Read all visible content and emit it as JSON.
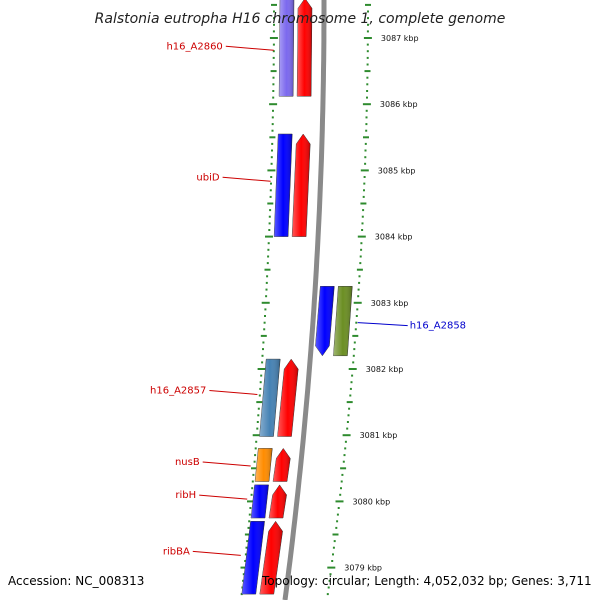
{
  "title": "Ralstonia eutropha H16 chromosome 1, complete genome",
  "accession": "Accession: NC_008313",
  "summary": "Topology: circular; Length: 4,052,032 bp; Genes: 3,711",
  "colors": {
    "backbone": "#8a8a8a",
    "tick": "#2e8b2e",
    "label_forward": "#cc0000",
    "label_reverse": "#0000cc",
    "cds": "#ff0000",
    "gene_blue": "#0000ff",
    "gene_purple": "#7b68ee",
    "gene_steel": "#4682b4",
    "gene_orange": "#ff8c00",
    "gene_olive": "#6b8e23"
  },
  "ticks": [
    {
      "kbp": 3087,
      "label": "3087 kbp"
    },
    {
      "kbp": 3086,
      "label": "3086 kbp"
    },
    {
      "kbp": 3085,
      "label": "3085 kbp"
    },
    {
      "kbp": 3084,
      "label": "3084 kbp"
    },
    {
      "kbp": 3083,
      "label": "3083 kbp"
    },
    {
      "kbp": 3082,
      "label": "3082 kbp"
    },
    {
      "kbp": 3081,
      "label": "3081 kbp"
    },
    {
      "kbp": 3080,
      "label": "3080 kbp"
    },
    {
      "kbp": 3079,
      "label": "3079 kbp"
    }
  ],
  "genes": [
    {
      "name": "h16_A2860",
      "strand": "forward",
      "start_kbp": 3086.12,
      "end_kbp": 3087.6,
      "color": "#7b68ee",
      "has_label": true,
      "label_kbp": 3086.83
    },
    {
      "name": "ubiD",
      "strand": "forward",
      "start_kbp": 3084.0,
      "end_kbp": 3085.55,
      "color": "#0000ff",
      "has_label": true,
      "label_kbp": 3084.85
    },
    {
      "name": "h16_A2857",
      "strand": "forward",
      "start_kbp": 3080.98,
      "end_kbp": 3082.15,
      "color": "#4682b4",
      "has_label": true,
      "label_kbp": 3081.63
    },
    {
      "name": "nusB",
      "strand": "forward",
      "start_kbp": 3080.3,
      "end_kbp": 3080.8,
      "color": "#ff8c00",
      "has_label": true,
      "label_kbp": 3080.55
    },
    {
      "name": "ribH",
      "strand": "forward",
      "start_kbp": 3079.75,
      "end_kbp": 3080.25,
      "color": "#0000ff",
      "has_label": true,
      "label_kbp": 3080.05
    },
    {
      "name": "ribBA",
      "strand": "forward",
      "start_kbp": 3078.6,
      "end_kbp": 3079.7,
      "color": "#0000ff",
      "has_label": true,
      "label_kbp": 3079.2
    },
    {
      "name": "h16_A2858",
      "strand": "reverse",
      "start_kbp": 3082.2,
      "end_kbp": 3083.25,
      "color": "#0000ff",
      "has_label": true,
      "label_kbp": 3082.67
    }
  ]
}
